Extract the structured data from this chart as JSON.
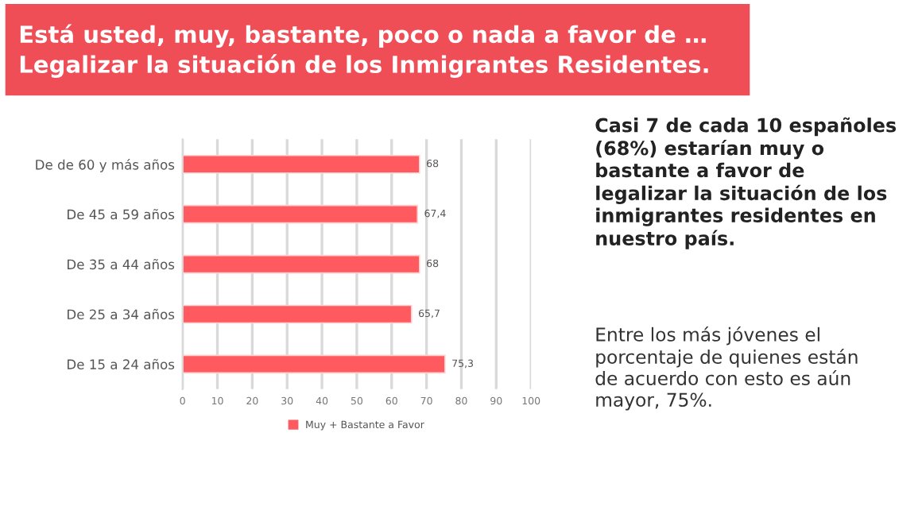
{
  "chart_data": {
    "type": "bar",
    "orientation": "horizontal",
    "title": "Está usted, muy, bastante, poco o nada a favor de …\nLegalizar la situación de los Inmigrantes Residentes.",
    "categories": [
      "De de 60 y más años",
      "De 45 a 59 años",
      "De 35 a 44 años",
      "De 25 a 34 años",
      "De 15 a 24 años"
    ],
    "series": [
      {
        "name": "Muy + Bastante a Favor",
        "color": "#ff5a5f",
        "values": [
          68,
          67.4,
          68,
          65.7,
          75.3
        ],
        "value_labels": [
          "68",
          "67,4",
          "68",
          "65,7",
          "75,3"
        ]
      }
    ],
    "xlim": [
      0,
      100
    ],
    "xticks": [
      0,
      10,
      20,
      30,
      40,
      50,
      60,
      70,
      80,
      90,
      100
    ],
    "grid": "x",
    "legend": "bottom",
    "annotations": [
      "Casi 7 de cada 10 españoles\n(68%) estarían muy o\nbastante a favor de\nlegalizar la situación de los\ninmigrantes residentes en\nnuestro país.",
      "Entre los más jóvenes el\nporcentaje de quienes están\nde acuerdo con esto es aún\nmayor, 75%."
    ]
  }
}
